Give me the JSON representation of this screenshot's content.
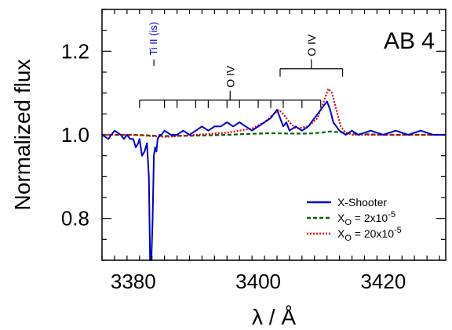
{
  "chart_data": {
    "type": "line",
    "title": "AB 4",
    "xlabel": "λ / Å",
    "ylabel": "Normalized flux",
    "xlim": [
      3375,
      3430
    ],
    "ylim": [
      0.7,
      1.3
    ],
    "x_ticks": [
      {
        "value": 3380,
        "label": "3380"
      },
      {
        "value": 3400,
        "label": "3400"
      },
      {
        "value": 3420,
        "label": "3420"
      }
    ],
    "y_ticks": [
      {
        "value": 0.8,
        "label": "0.8"
      },
      {
        "value": 1.0,
        "label": "1.0"
      },
      {
        "value": 1.2,
        "label": "1.2"
      }
    ],
    "x_minor_step": 2,
    "y_minor_step": 0.05,
    "grid": false,
    "legend_position": "bottom-right",
    "series": [
      {
        "name": "X-Shooter",
        "color": "#0000cc",
        "style": "solid",
        "x": [
          3375.0,
          3376.0,
          3377.0,
          3378.0,
          3378.5,
          3379.0,
          3379.5,
          3380.0,
          3380.4,
          3380.8,
          3381.0,
          3381.4,
          3381.8,
          3382.2,
          3382.5,
          3382.7,
          3382.9,
          3383.1,
          3383.3,
          3383.5,
          3383.7,
          3383.9,
          3384.2,
          3384.5,
          3385.0,
          3386.0,
          3387.0,
          3388.0,
          3389.0,
          3390.0,
          3391.0,
          3392.0,
          3393.0,
          3394.0,
          3395.0,
          3396.0,
          3397.0,
          3398.0,
          3399.0,
          3400.0,
          3401.0,
          3402.0,
          3403.0,
          3403.5,
          3404.0,
          3404.5,
          3405.0,
          3406.0,
          3407.0,
          3408.0,
          3409.0,
          3410.0,
          3410.5,
          3411.0,
          3411.5,
          3412.0,
          3412.5,
          3413.0,
          3414.0,
          3415.0,
          3416.0,
          3418.0,
          3420.0,
          3422.0,
          3424.0,
          3426.0,
          3428.0,
          3430.0
        ],
        "y": [
          1.0,
          0.99,
          1.01,
          1.0,
          0.99,
          1.0,
          0.99,
          0.99,
          0.97,
          0.98,
          0.99,
          0.95,
          0.96,
          0.98,
          0.9,
          0.7,
          0.7,
          0.8,
          0.95,
          0.97,
          0.96,
          0.99,
          1.0,
          1.0,
          1.01,
          1.0,
          1.0,
          1.01,
          1.0,
          1.01,
          1.02,
          1.01,
          1.02,
          1.02,
          1.03,
          1.02,
          1.03,
          1.02,
          1.01,
          1.02,
          1.03,
          1.04,
          1.06,
          1.04,
          1.02,
          1.03,
          1.01,
          1.02,
          1.01,
          1.02,
          1.04,
          1.06,
          1.07,
          1.08,
          1.06,
          1.03,
          1.02,
          1.01,
          1.0,
          1.01,
          1.0,
          1.01,
          1.0,
          1.01,
          1.0,
          1.01,
          1.0,
          1.0
        ]
      },
      {
        "name": "X_O = 2x10^-5",
        "color": "#006400",
        "style": "dashed",
        "x": [
          3375.0,
          3380.0,
          3385.0,
          3390.0,
          3395.0,
          3398.0,
          3402.0,
          3405.0,
          3408.0,
          3410.0,
          3411.5,
          3413.0,
          3416.0,
          3420.0,
          3425.0,
          3430.0
        ],
        "y": [
          1.0,
          1.0,
          0.997,
          0.998,
          1.0,
          1.002,
          1.004,
          1.003,
          1.003,
          1.005,
          1.008,
          1.006,
          1.002,
          1.0,
          1.0,
          1.0
        ]
      },
      {
        "name": "X_O = 20x10^-5",
        "color": "#dd0000",
        "style": "dotted",
        "x": [
          3375.0,
          3380.0,
          3385.0,
          3390.0,
          3395.0,
          3397.0,
          3399.0,
          3401.0,
          3402.5,
          3403.3,
          3404.0,
          3405.0,
          3406.0,
          3408.0,
          3409.5,
          3410.5,
          3411.2,
          3411.8,
          3412.5,
          3413.2,
          3414.0,
          3415.0,
          3418.0,
          3422.0,
          3426.0,
          3430.0
        ],
        "y": [
          1.0,
          1.0,
          0.995,
          1.0,
          1.005,
          1.01,
          1.015,
          1.03,
          1.05,
          1.06,
          1.05,
          1.03,
          1.015,
          1.02,
          1.04,
          1.08,
          1.11,
          1.1,
          1.06,
          1.02,
          1.005,
          1.0,
          1.0,
          1.0,
          1.0,
          1.0
        ]
      }
    ],
    "legend": [
      {
        "label": "X-Shooter",
        "color": "#0000cc",
        "style": "solid"
      },
      {
        "label_main": "X",
        "label_sub": "O",
        "label_value": " =    2x10",
        "label_exp": "-5",
        "color": "#006400",
        "style": "dashed"
      },
      {
        "label_main": "X",
        "label_sub": "O",
        "label_value": " = 20x10",
        "label_exp": "-5",
        "color": "#dd0000",
        "style": "dotted"
      }
    ],
    "annotations": {
      "ti_label": "Ti II (is)",
      "ti_color": "#0000cc",
      "ti_x": 3383.3,
      "o4_a_label": "O IV",
      "o4_a_tick_x": [
        3381.0,
        3385.0,
        3387.0,
        3390.0,
        3392.0,
        3395.0,
        3397.0,
        3400.0,
        3402.0,
        3404.0,
        3407.0,
        3410.0
      ],
      "o4_a_center_x": 3395.5,
      "o4_a_y": 1.083,
      "o4_b_label": "O IV",
      "o4_b_tick_x": [
        3403.5,
        3413.5
      ],
      "o4_b_center_x": 3408.5,
      "o4_b_y": 1.158
    }
  }
}
